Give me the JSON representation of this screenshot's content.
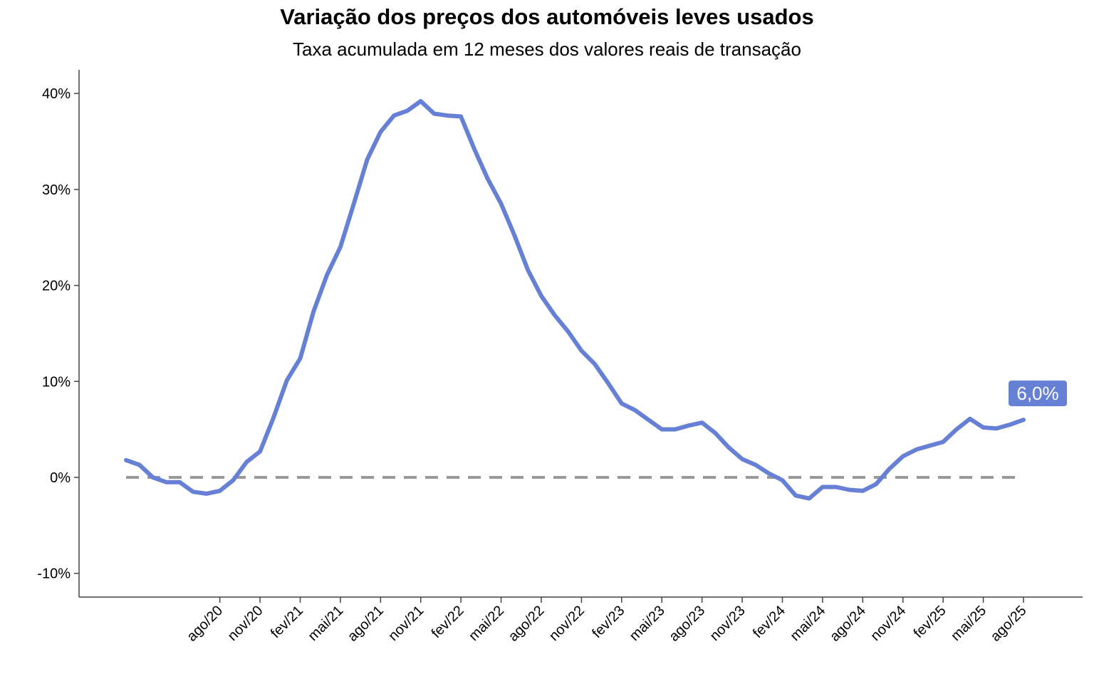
{
  "chart_data": {
    "type": "line",
    "title": "Variação dos preços dos automóveis leves usados",
    "subtitle": "Taxa acumulada em 12 meses dos valores reais de transação",
    "xlabel": "",
    "ylabel": "",
    "ylim": [
      -12.5,
      42.5
    ],
    "yticks": [
      -10,
      0,
      10,
      20,
      30,
      40
    ],
    "ytick_labels": [
      "-10%",
      "0%",
      "10%",
      "20%",
      "30%",
      "40%"
    ],
    "x_tick_labels": [
      "ago/20",
      "nov/20",
      "fev/21",
      "mai/21",
      "ago/21",
      "nov/21",
      "fev/22",
      "mai/22",
      "ago/22",
      "nov/22",
      "fev/23",
      "mai/23",
      "ago/23",
      "nov/23",
      "fev/24",
      "mai/24",
      "ago/24",
      "nov/24",
      "fev/25",
      "mai/25",
      "ago/25"
    ],
    "x_start": "jan/20",
    "x_end": "ago/25",
    "series": [
      {
        "color": "#6680d6",
        "values": [
          1.8,
          1.3,
          0.0,
          -0.5,
          -0.5,
          -1.5,
          -1.7,
          -1.4,
          -0.3,
          1.6,
          2.7,
          6.2,
          10.1,
          12.4,
          17.3,
          21.1,
          24.0,
          28.5,
          33.1,
          36.0,
          37.7,
          38.2,
          39.2,
          37.9,
          37.7,
          37.6,
          34.2,
          31.1,
          28.5,
          25.2,
          21.6,
          18.9,
          16.9,
          15.2,
          13.2,
          11.8,
          9.8,
          7.7,
          7.0,
          6.0,
          5.0,
          5.0,
          5.4,
          5.7,
          4.6,
          3.1,
          1.9,
          1.3,
          0.4,
          -0.3,
          -1.9,
          -2.2,
          -1.0,
          -1.0,
          -1.3,
          -1.4,
          -0.7,
          0.9,
          2.2,
          2.9,
          3.3,
          3.7,
          5.0,
          6.1,
          5.2,
          5.1,
          5.5,
          6.0
        ]
      }
    ],
    "reference_line": {
      "y": 0,
      "style": "dashed",
      "color": "#999999"
    },
    "end_label": {
      "text": "6,0%",
      "color": "#6680d6"
    },
    "grid": false,
    "legend": "none"
  }
}
